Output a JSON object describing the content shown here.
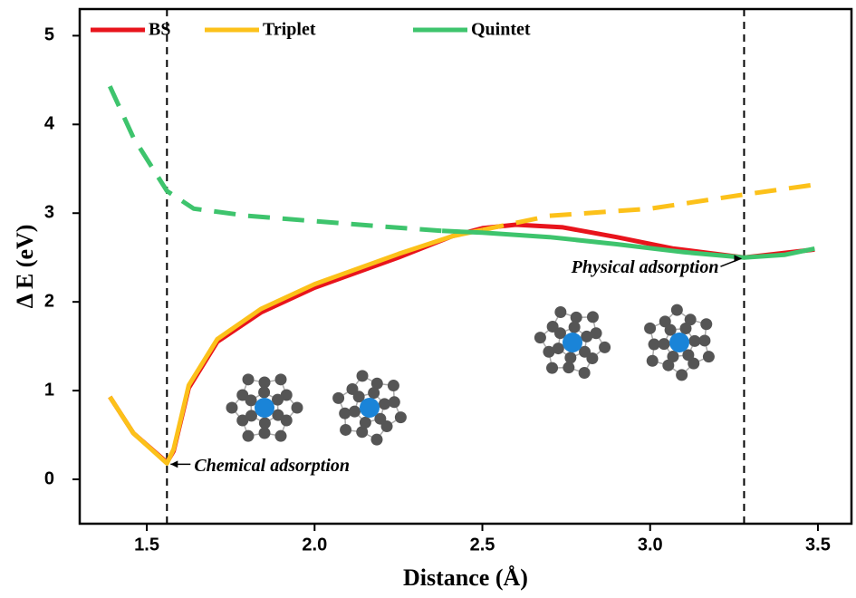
{
  "chart_data": {
    "type": "line",
    "x_label": "Distance (Å)",
    "y_label": "Δ E (eV)",
    "xlim": [
      1.3,
      3.6
    ],
    "ylim": [
      -0.5,
      5.3
    ],
    "xticks": [
      1.5,
      {
        "value": 2,
        "label": "2.0"
      },
      2.5,
      {
        "value": 3,
        "label": "3.0"
      },
      3.5
    ],
    "yticks": [
      0,
      1,
      2,
      3,
      4,
      5
    ],
    "vlines": [
      1.56,
      3.28
    ],
    "legend": "top-left",
    "series": [
      {
        "name": "BS",
        "color": "#e8141c",
        "segments": [
          {
            "style": "solid",
            "x": [
              1.39,
              1.46,
              1.56,
              1.58,
              1.625,
              1.71,
              1.84,
              2.0,
              2.25,
              2.41,
              2.5,
              2.6,
              2.74,
              2.9,
              3.07,
              3.28,
              3.49
            ],
            "values": [
              0.93,
              0.52,
              0.19,
              0.32,
              1.03,
              1.55,
              1.88,
              2.16,
              2.5,
              2.74,
              2.83,
              2.87,
              2.84,
              2.73,
              2.6,
              2.5,
              2.59
            ]
          }
        ]
      },
      {
        "name": "Triplet",
        "color": "#fcc11a",
        "segments": [
          {
            "style": "solid",
            "x": [
              1.39,
              1.46,
              1.56,
              1.58,
              1.625,
              1.71,
              1.84,
              2.0,
              2.25,
              2.41,
              2.5
            ],
            "values": [
              0.93,
              0.52,
              0.18,
              0.34,
              1.06,
              1.58,
              1.92,
              2.2,
              2.54,
              2.74,
              2.81
            ]
          },
          {
            "style": "dashed",
            "x": [
              2.5,
              2.7,
              3.0,
              3.28,
              3.49
            ],
            "values": [
              2.81,
              2.97,
              3.05,
              3.21,
              3.32
            ]
          }
        ]
      },
      {
        "name": "Quintet",
        "color": "#3ec46d",
        "segments": [
          {
            "style": "dashed",
            "x": [
              1.39,
              1.46,
              1.56,
              1.64,
              1.8,
              2.0,
              2.2,
              2.38
            ],
            "values": [
              4.43,
              3.85,
              3.25,
              3.05,
              2.97,
              2.91,
              2.85,
              2.8
            ]
          },
          {
            "style": "solid",
            "x": [
              2.38,
              2.5,
              2.7,
              2.9,
              3.1,
              3.28,
              3.4,
              3.49
            ],
            "values": [
              2.8,
              2.78,
              2.73,
              2.65,
              2.56,
              2.5,
              2.53,
              2.6
            ]
          }
        ]
      }
    ],
    "annotations": [
      {
        "text": "Chemical adsorption",
        "x": 1.56,
        "y": 0.18
      },
      {
        "text": "Physical adsorption",
        "x": 3.28,
        "y": 2.5
      }
    ]
  }
}
